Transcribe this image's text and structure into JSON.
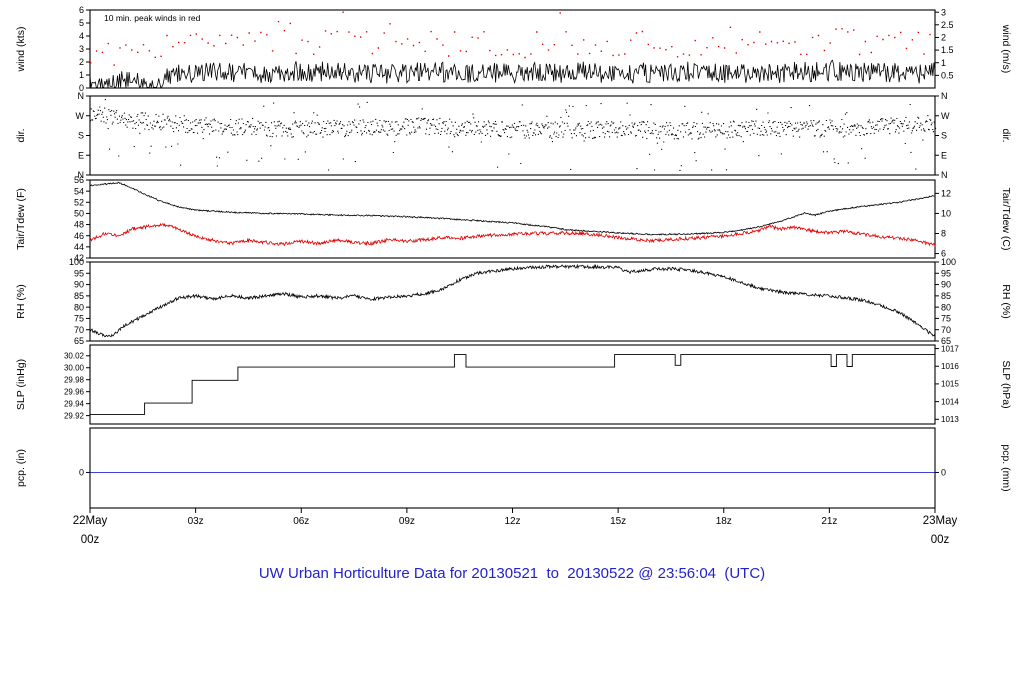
{
  "title": {
    "text": "UW Urban Horticulture Data for 20130521  to  20130522 @ 23:56:04  (UTC)"
  },
  "colors": {
    "title": "#2222cc",
    "date": "#dd0000",
    "black": "#000000",
    "red": "#e00000",
    "pcp_line": "#0000cc"
  },
  "x_axis": {
    "hours": [
      0,
      24
    ],
    "ticks": [
      {
        "h": 3,
        "label": "03z"
      },
      {
        "h": 6,
        "label": "06z"
      },
      {
        "h": 9,
        "label": "09z"
      },
      {
        "h": 12,
        "label": "12z"
      },
      {
        "h": 15,
        "label": "15z"
      },
      {
        "h": 18,
        "label": "18z"
      },
      {
        "h": 21,
        "label": "21z"
      }
    ],
    "start_label_line1": "22May",
    "start_label_line2": "00z",
    "end_label_line1": "23May",
    "end_label_line2": "00z"
  },
  "chart_data": [
    {
      "id": "wind",
      "type": "line",
      "label_left": "wind (kts)",
      "label_right": "wind (m/s)",
      "ylim": [
        0,
        6
      ],
      "tick_font": 9,
      "ticks_left": [
        {
          "v": 0,
          "t": "0"
        },
        {
          "v": 1,
          "t": "1"
        },
        {
          "v": 2,
          "t": "2"
        },
        {
          "v": 3,
          "t": "3"
        },
        {
          "v": 4,
          "t": "4"
        },
        {
          "v": 5,
          "t": "5"
        },
        {
          "v": 6,
          "t": "6"
        }
      ],
      "ticks_right": [
        {
          "v": 0.972,
          "t": "0.5"
        },
        {
          "v": 1.944,
          "t": "1"
        },
        {
          "v": 2.916,
          "t": "1.5"
        },
        {
          "v": 3.889,
          "t": "2"
        },
        {
          "v": 4.861,
          "t": "2.5"
        },
        {
          "v": 5.833,
          "t": "3"
        }
      ],
      "annotation": {
        "text": "10 min. peak winds in red",
        "color": "#e00000"
      },
      "series": [
        {
          "name": "wind-speed",
          "style": "line",
          "color": "#000000",
          "step": 0.03,
          "jitter": 0.8,
          "clamp": [
            0.05,
            5.9
          ],
          "width": 0.8,
          "x": [
            0,
            0.7,
            1.1,
            1.3,
            1.6,
            2,
            2.2,
            2.6,
            3,
            4,
            5,
            6,
            7,
            8,
            9,
            10,
            11,
            12,
            13,
            14,
            15,
            16,
            17,
            18,
            19,
            20,
            21,
            22,
            23,
            24
          ],
          "y": [
            0.35,
            0.3,
            0.9,
            0.4,
            0.3,
            0.35,
            1.0,
            1.1,
            1.1,
            1.2,
            1.1,
            1.3,
            1.2,
            1.1,
            1.15,
            1.25,
            1.1,
            1.2,
            1.15,
            1.25,
            1.1,
            1.2,
            1.3,
            1.15,
            1.05,
            1.2,
            1.35,
            1.2,
            1.1,
            1.2
          ]
        },
        {
          "name": "wind-peaks",
          "style": "dots",
          "color": "#e00000",
          "step": 0.1667,
          "jitter": 1.0,
          "clamp": [
            1.7,
            5.9
          ],
          "dot": 1.4,
          "outliers": {
            "frac": 0.05,
            "range": [
              4.6,
              5.9
            ]
          },
          "x": [
            0,
            1,
            2,
            3,
            6,
            9,
            12,
            15,
            18,
            21,
            24
          ],
          "y": [
            2.2,
            2.9,
            3.4,
            3.3,
            3.5,
            3.4,
            3.3,
            3.4,
            3.2,
            3.6,
            3.4
          ]
        }
      ]
    },
    {
      "id": "dir",
      "type": "scatter",
      "label_left": "dir.",
      "label_right": "dir.",
      "ylim": [
        0,
        360
      ],
      "tick_font": 9,
      "ticks_left": [
        {
          "v": 0,
          "t": "N"
        },
        {
          "v": 90,
          "t": "E"
        },
        {
          "v": 180,
          "t": "S"
        },
        {
          "v": 270,
          "t": "W"
        },
        {
          "v": 360,
          "t": "N"
        }
      ],
      "ticks_right": [
        {
          "v": 0,
          "t": "N"
        },
        {
          "v": 90,
          "t": "E"
        },
        {
          "v": 180,
          "t": "S"
        },
        {
          "v": 270,
          "t": "W"
        },
        {
          "v": 360,
          "t": "N"
        }
      ],
      "series": [
        {
          "name": "wind-direction",
          "style": "dots",
          "color": "#000000",
          "step": 0.02,
          "jitter": 38,
          "clamp": [
            2,
            358
          ],
          "dot": 1.1,
          "outliers": {
            "frac": 0.1,
            "range": [
              10,
              350
            ]
          },
          "x": [
            0,
            0.5,
            1,
            2,
            3,
            4,
            5,
            6,
            7,
            8,
            9,
            10,
            11,
            12,
            13,
            14,
            15,
            16,
            17,
            18,
            19,
            20,
            21,
            22,
            23,
            24
          ],
          "y": [
            280,
            265,
            250,
            240,
            228,
            220,
            212,
            208,
            212,
            216,
            220,
            222,
            212,
            206,
            203,
            206,
            210,
            204,
            200,
            206,
            212,
            210,
            214,
            218,
            225,
            235
          ]
        }
      ]
    },
    {
      "id": "temp",
      "type": "line",
      "label_left": "Tair/Tdew (F)",
      "label_right": "Tair/Tdew (C)",
      "ylim": [
        42,
        56
      ],
      "tick_font": 9,
      "ticks_left": [
        {
          "v": 42,
          "t": "42"
        },
        {
          "v": 44,
          "t": "44"
        },
        {
          "v": 46,
          "t": "46"
        },
        {
          "v": 48,
          "t": "48"
        },
        {
          "v": 50,
          "t": "50"
        },
        {
          "v": 52,
          "t": "52"
        },
        {
          "v": 54,
          "t": "54"
        },
        {
          "v": 56,
          "t": "56"
        }
      ],
      "ticks_right": [
        {
          "v": 42.8,
          "t": "6"
        },
        {
          "v": 46.4,
          "t": "8"
        },
        {
          "v": 50,
          "t": "10"
        },
        {
          "v": 53.6,
          "t": "12"
        }
      ],
      "series": [
        {
          "name": "tair",
          "style": "line",
          "color": "#000000",
          "step": 0.02,
          "jitter": 0.12,
          "clamp": [
            42.1,
            55.9
          ],
          "width": 0.8,
          "x": [
            0,
            0.5,
            0.8,
            1,
            1.5,
            2,
            2.5,
            3,
            4,
            5,
            6,
            7,
            8,
            9,
            10,
            11,
            12,
            13,
            13.5,
            14,
            15,
            16,
            17,
            18,
            18.5,
            19,
            19.5,
            20,
            20.3,
            20.6,
            21,
            21.5,
            22,
            23,
            24
          ],
          "y": [
            55.0,
            55.3,
            55.5,
            55.1,
            53.6,
            52.2,
            51.2,
            50.6,
            50.2,
            50.0,
            49.9,
            49.7,
            49.6,
            49.4,
            49.1,
            48.7,
            48.3,
            47.6,
            47.1,
            46.9,
            46.5,
            46.2,
            46.3,
            46.6,
            47.0,
            47.6,
            48.4,
            49.4,
            50.1,
            49.7,
            50.4,
            50.9,
            51.3,
            52.0,
            53.2
          ]
        },
        {
          "name": "tdew",
          "style": "line",
          "color": "#e00000",
          "step": 0.02,
          "jitter": 0.3,
          "clamp": [
            42.1,
            55.9
          ],
          "width": 0.8,
          "x": [
            0,
            0.4,
            0.8,
            1.2,
            1.6,
            2,
            2.4,
            2.8,
            3.2,
            3.6,
            4,
            4.5,
            5,
            5.5,
            6,
            6.5,
            7,
            7.5,
            8,
            8.5,
            9,
            9.5,
            10,
            10.5,
            11,
            11.5,
            12,
            12.5,
            13,
            13.5,
            14,
            14.5,
            15,
            15.5,
            16,
            16.5,
            17,
            17.5,
            18,
            18.5,
            19,
            19.3,
            19.6,
            20,
            20.5,
            21,
            21.5,
            22,
            22.5,
            23,
            23.5,
            24
          ],
          "y": [
            45.2,
            46.3,
            46.0,
            47.2,
            47.6,
            48.0,
            47.4,
            46.4,
            45.6,
            45.0,
            44.6,
            45.2,
            44.8,
            44.5,
            45.0,
            44.6,
            45.2,
            44.8,
            44.6,
            45.3,
            45.0,
            45.3,
            45.7,
            45.5,
            45.9,
            46.1,
            46.3,
            46.4,
            46.4,
            46.5,
            46.4,
            46.1,
            45.7,
            45.3,
            45.1,
            45.3,
            45.5,
            45.7,
            46.0,
            46.4,
            47.0,
            47.7,
            47.2,
            47.5,
            46.9,
            46.5,
            46.8,
            46.2,
            45.8,
            45.5,
            45.1,
            44.3
          ]
        }
      ]
    },
    {
      "id": "rh",
      "type": "line",
      "label_left": "RH (%)",
      "label_right": "RH (%)",
      "ylim": [
        65,
        100
      ],
      "tick_font": 9,
      "ticks_left": [
        {
          "v": 65,
          "t": "65"
        },
        {
          "v": 70,
          "t": "70"
        },
        {
          "v": 75,
          "t": "75"
        },
        {
          "v": 80,
          "t": "80"
        },
        {
          "v": 85,
          "t": "85"
        },
        {
          "v": 90,
          "t": "90"
        },
        {
          "v": 95,
          "t": "95"
        },
        {
          "v": 100,
          "t": "100"
        }
      ],
      "ticks_right": [
        {
          "v": 65,
          "t": "65"
        },
        {
          "v": 70,
          "t": "70"
        },
        {
          "v": 75,
          "t": "75"
        },
        {
          "v": 80,
          "t": "80"
        },
        {
          "v": 85,
          "t": "85"
        },
        {
          "v": 90,
          "t": "90"
        },
        {
          "v": 95,
          "t": "95"
        },
        {
          "v": 100,
          "t": "100"
        }
      ],
      "series": [
        {
          "name": "rh",
          "style": "line",
          "color": "#000000",
          "step": 0.02,
          "jitter": 0.7,
          "clamp": [
            65.2,
            99.8
          ],
          "width": 0.8,
          "x": [
            0,
            0.3,
            0.6,
            1,
            1.5,
            2,
            2.5,
            3,
            3.5,
            4,
            4.5,
            5,
            5.5,
            6,
            6.5,
            7,
            7.5,
            8,
            8.5,
            9,
            9.5,
            10,
            10.5,
            11,
            11.5,
            12,
            12.5,
            13,
            14,
            15,
            15.3,
            15.6,
            16,
            16.5,
            17,
            17.5,
            18,
            18.5,
            19,
            19.5,
            20,
            20.5,
            21,
            21.5,
            22,
            22.5,
            23,
            23.5,
            24
          ],
          "y": [
            70,
            68,
            67,
            72,
            76,
            80,
            84,
            85,
            83.5,
            85,
            84,
            85,
            86,
            84.5,
            85,
            84,
            85,
            83.5,
            84.5,
            85,
            86,
            88,
            92,
            95,
            96,
            97,
            97.5,
            98,
            98,
            97.5,
            95.5,
            96,
            96.8,
            97,
            96.5,
            95,
            93.5,
            91,
            88.5,
            87,
            86,
            85.5,
            85,
            84,
            83,
            80.5,
            77.5,
            72.5,
            67
          ]
        }
      ]
    },
    {
      "id": "slp",
      "type": "line",
      "label_left": "SLP (inHg)",
      "label_right": "SLP (hPa)",
      "ylim": [
        29.906,
        30.038
      ],
      "tick_font": 8,
      "ticks_left": [
        {
          "v": 29.92,
          "t": "29.92"
        },
        {
          "v": 29.94,
          "t": "29.94"
        },
        {
          "v": 29.96,
          "t": "29.96"
        },
        {
          "v": 29.98,
          "t": "29.98"
        },
        {
          "v": 30.0,
          "t": "30.00"
        },
        {
          "v": 30.02,
          "t": "30.02"
        }
      ],
      "ticks_right": [
        {
          "v": 29.9139,
          "t": "1013"
        },
        {
          "v": 29.9434,
          "t": "1014"
        },
        {
          "v": 29.973,
          "t": "1015"
        },
        {
          "v": 30.0025,
          "t": "1016"
        },
        {
          "v": 30.032,
          "t": "1017"
        }
      ],
      "series": [
        {
          "name": "slp",
          "style": "step",
          "color": "#000000",
          "points": [
            [
              0,
              29.922
            ],
            [
              1.55,
              29.941
            ],
            [
              2.9,
              29.979
            ],
            [
              4.2,
              30.001
            ],
            [
              10.35,
              30.022
            ],
            [
              10.68,
              30.001
            ],
            [
              14.9,
              30.022
            ],
            [
              16.62,
              30.004
            ],
            [
              16.78,
              30.022
            ],
            [
              21.05,
              30.002
            ],
            [
              21.2,
              30.022
            ],
            [
              21.5,
              30.002
            ],
            [
              21.65,
              30.022
            ],
            [
              24,
              30.022
            ]
          ]
        }
      ]
    },
    {
      "id": "pcp",
      "type": "line",
      "label_left": "pcp. (in)",
      "label_right": "pcp. (mm)",
      "ylim": [
        -0.8,
        1.0
      ],
      "tick_font": 9,
      "ticks_left": [
        {
          "v": 0,
          "t": "0"
        }
      ],
      "ticks_right": [
        {
          "v": 0,
          "t": "0"
        }
      ],
      "series": [
        {
          "name": "pcp",
          "style": "line",
          "color": "#0000cc",
          "step": 0.5,
          "jitter": 0,
          "width": 0.8,
          "x": [
            0,
            24
          ],
          "y": [
            0,
            0
          ]
        }
      ]
    }
  ]
}
